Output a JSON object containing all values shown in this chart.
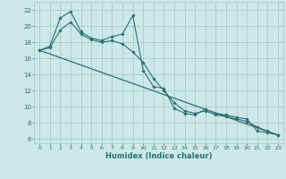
{
  "title": "",
  "xlabel": "Humidex (Indice chaleur)",
  "background_color": "#cde8e8",
  "grid_color": "#aacccc",
  "line_color": "#2d7070",
  "xlim": [
    -0.5,
    23.5
  ],
  "ylim": [
    5.5,
    23.0
  ],
  "yticks": [
    6,
    8,
    10,
    12,
    14,
    16,
    18,
    20,
    22
  ],
  "xticks": [
    0,
    1,
    2,
    3,
    4,
    5,
    6,
    7,
    8,
    9,
    10,
    11,
    12,
    13,
    14,
    15,
    16,
    17,
    18,
    19,
    20,
    21,
    22,
    23
  ],
  "line1_x": [
    0,
    1,
    2,
    3,
    4,
    5,
    6,
    7,
    8,
    9,
    10,
    11,
    12,
    13,
    14,
    15,
    16,
    17,
    18,
    19,
    20,
    21,
    22,
    23
  ],
  "line1_y": [
    17.0,
    17.5,
    21.0,
    21.8,
    19.3,
    18.5,
    18.2,
    18.7,
    19.0,
    21.3,
    14.5,
    12.5,
    12.3,
    9.8,
    9.2,
    9.0,
    9.7,
    9.2,
    9.0,
    8.7,
    8.5,
    7.0,
    6.8,
    6.5
  ],
  "line2_x": [
    0,
    1,
    2,
    3,
    4,
    5,
    6,
    7,
    8,
    9,
    10,
    11,
    12,
    13,
    14,
    15,
    16,
    17,
    18,
    19,
    20,
    21,
    22,
    23
  ],
  "line2_y": [
    17.0,
    17.3,
    19.5,
    20.5,
    19.0,
    18.3,
    18.0,
    18.2,
    17.8,
    16.8,
    15.5,
    13.5,
    12.0,
    10.5,
    9.5,
    9.2,
    9.5,
    9.0,
    8.8,
    8.5,
    8.2,
    7.5,
    7.0,
    6.5
  ],
  "line3_x": [
    0,
    23
  ],
  "line3_y": [
    17.0,
    6.5
  ]
}
